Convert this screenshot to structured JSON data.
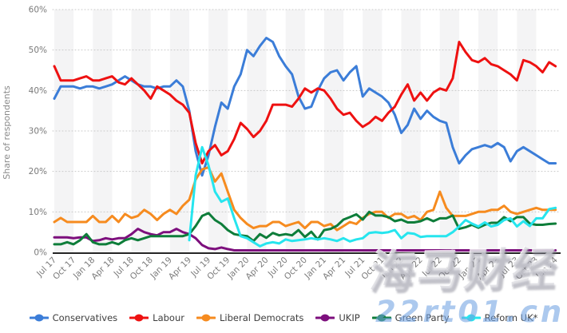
{
  "watermarks": {
    "cjk": "海马财经",
    "domain": "22rt01.cn"
  },
  "colors": {
    "background": "#ffffff",
    "band": "#f4f4f5",
    "grid": "#c8c8c8",
    "axis": "#262626",
    "tick_text": "#7a7a7a",
    "axis_title_text": "#8a8a8a",
    "legend_text": "#3d3d3d"
  },
  "chart_data": {
    "type": "line",
    "title": "",
    "ylabel": "Share of respondents",
    "xlabel": "",
    "ylim": [
      0,
      60
    ],
    "grid": "horizontal-dotted",
    "legend_position": "bottom",
    "y_tick_labels": [
      "0%",
      "10%",
      "20%",
      "30%",
      "40%",
      "50%",
      "60%"
    ],
    "x_tick_labels": [
      "Jul 17",
      "Oct 17",
      "Jan 18",
      "Apr 18",
      "Jul 18",
      "Oct 18",
      "Jan 19",
      "Apr 19",
      "Jul 19",
      "Oct 19",
      "Jan 20",
      "Apr 20",
      "Jul 20",
      "Oct 20",
      "Jan 21",
      "Apr 21",
      "Jul 21",
      "Oct 21",
      "Jan 22",
      "Apr 22",
      "Jul 22",
      "Oct 22",
      "Jan 23",
      "Apr 23",
      "Jul 23",
      "Oct 23",
      "Jan 24"
    ],
    "months_per_tick": 3,
    "x_unit": "monthly survey waves, Jul 2017 - Jan 2024",
    "series": [
      {
        "name": "Conservatives",
        "color": "#3b7dd8",
        "values": [
          38,
          41,
          41,
          41,
          40.5,
          41,
          41,
          40.5,
          41,
          41.5,
          42.5,
          43.5,
          42.5,
          41.5,
          41,
          41,
          40.5,
          41,
          41,
          42.5,
          41,
          35,
          25,
          19,
          24,
          31,
          37,
          35.5,
          41,
          44,
          50,
          48.5,
          51,
          53,
          52,
          48.5,
          46,
          44,
          38.5,
          35.5,
          36,
          40,
          43,
          44.5,
          45,
          42.5,
          44.5,
          46,
          38.5,
          40.5,
          39.5,
          38.5,
          37,
          34,
          29.5,
          31.5,
          35.5,
          33,
          35,
          33.5,
          32.5,
          32,
          26,
          22,
          24,
          25.5,
          26,
          26.5,
          26,
          27,
          26,
          22.5,
          25,
          26,
          25,
          24,
          23,
          22,
          22
        ]
      },
      {
        "name": "Labour",
        "color": "#ee1111",
        "values": [
          46,
          42.5,
          42.5,
          42.5,
          43,
          43.5,
          42.5,
          42.5,
          43,
          43.5,
          42,
          41.5,
          43,
          41.5,
          40,
          38,
          41,
          40,
          39,
          37.5,
          36.5,
          34.5,
          27,
          22,
          25,
          26.5,
          24,
          25,
          28,
          32,
          30.5,
          28.5,
          30,
          32.5,
          36.5,
          36.5,
          36.5,
          36,
          38,
          40.5,
          39.5,
          40.5,
          40,
          38,
          35.5,
          34,
          34.5,
          32.5,
          31,
          32,
          33.5,
          32.5,
          34.5,
          36,
          39,
          41.5,
          37.5,
          39.5,
          37.5,
          39.5,
          40.5,
          40,
          43,
          52,
          49.5,
          47.5,
          47,
          48,
          46.5,
          46,
          45,
          44,
          42.5,
          47.5,
          47,
          46,
          44.5,
          47,
          46
        ]
      },
      {
        "name": "Liberal Democrats",
        "color": "#f68b1f",
        "values": [
          7.5,
          8.5,
          7.5,
          7.5,
          7.5,
          7.5,
          9,
          7.5,
          7.5,
          9,
          7.5,
          9.5,
          8.5,
          9,
          10.5,
          9.5,
          8,
          9.5,
          10.5,
          9.5,
          11.5,
          13,
          18,
          20.5,
          21,
          17.5,
          19.5,
          15,
          10.5,
          8.5,
          7,
          6,
          6.5,
          6.5,
          7.5,
          7.5,
          6.5,
          7,
          7.5,
          6,
          7.5,
          7.5,
          6.5,
          7,
          5.5,
          6.5,
          7.5,
          7,
          8.5,
          9.5,
          10,
          10,
          8.5,
          9.5,
          9.5,
          8.5,
          9,
          8,
          10,
          10.5,
          15,
          11,
          9,
          9,
          9,
          9.5,
          10,
          10,
          10.5,
          10.5,
          11.5,
          10,
          9.5,
          10,
          10.5,
          11,
          10.5,
          10.5,
          10.5
        ]
      },
      {
        "name": "UKIP",
        "color": "#7d0f7d",
        "values": [
          3.7,
          3.7,
          3.7,
          3.5,
          3.7,
          3.7,
          2.8,
          3,
          3.5,
          3.2,
          3.5,
          3.5,
          4.5,
          5.8,
          5,
          4.5,
          4.2,
          5,
          5,
          5.8,
          5,
          4.5,
          3.5,
          1.8,
          1,
          0.8,
          1.2,
          0.8,
          0.5,
          0.5,
          0.5,
          0.5,
          0.5,
          0.5,
          0.5,
          0.5,
          0.5,
          0.5,
          0.5,
          0.5,
          0.5,
          0.5,
          0.5,
          0.5,
          0.5,
          0.5,
          0.5,
          0.5,
          0.5,
          0.5,
          0.5,
          0.5,
          0.5,
          0.5,
          0.5,
          0.5,
          0.5,
          0.5,
          0.5,
          0.5,
          0.5,
          0.5,
          0.5,
          0.5,
          0.5,
          0.5,
          0.5,
          0.5,
          0.5,
          0.5,
          0.5,
          0.5,
          0.5,
          0.5,
          0.5,
          0.5,
          0.5,
          0.5,
          0.5
        ]
      },
      {
        "name": "Green Party",
        "color": "#0e7d3a",
        "values": [
          2,
          2,
          2.5,
          2,
          3,
          4.5,
          2.5,
          2,
          2,
          2.5,
          2,
          3,
          3.5,
          3,
          3.5,
          4,
          4,
          4,
          4,
          4,
          4,
          4.5,
          6.5,
          9,
          9.7,
          8,
          7,
          5.5,
          4.5,
          4.2,
          4,
          2.8,
          4.5,
          3.6,
          4.8,
          4.2,
          4.5,
          4.2,
          5.5,
          3.8,
          5.1,
          3.2,
          5.5,
          5.8,
          6.6,
          8.1,
          8.7,
          9.4,
          8.1,
          10,
          9.1,
          9.1,
          8.7,
          7.7,
          8.1,
          7.4,
          7.4,
          7.7,
          8.4,
          7.7,
          8.4,
          8.4,
          9.1,
          5.8,
          6.2,
          6.8,
          6.1,
          6.8,
          7.3,
          7.3,
          8.7,
          7.7,
          8.7,
          8.7,
          7.1,
          6.8,
          6.8,
          7,
          7.1
        ]
      },
      {
        "name": "Reform UK*",
        "color": "#26e5ee",
        "values": [
          null,
          null,
          null,
          null,
          null,
          null,
          null,
          null,
          null,
          null,
          null,
          null,
          null,
          null,
          null,
          null,
          null,
          null,
          null,
          null,
          null,
          3,
          19,
          26,
          21.5,
          15,
          12.5,
          13.3,
          8.4,
          4,
          3.5,
          2.5,
          1.5,
          2.2,
          2.5,
          2.2,
          3.2,
          2.8,
          3,
          3.2,
          3.5,
          3.2,
          3.5,
          3.2,
          2.8,
          3.5,
          2.7,
          3.2,
          3.5,
          4.8,
          5,
          4.8,
          5,
          5.5,
          3.5,
          4.8,
          4.6,
          3.8,
          4,
          4,
          4,
          4,
          5,
          6.4,
          8,
          7.1,
          6.4,
          7.4,
          6.4,
          6.8,
          8,
          8.4,
          6.4,
          7.7,
          6.5,
          8.4,
          8.4,
          10.7,
          11
        ]
      }
    ]
  }
}
